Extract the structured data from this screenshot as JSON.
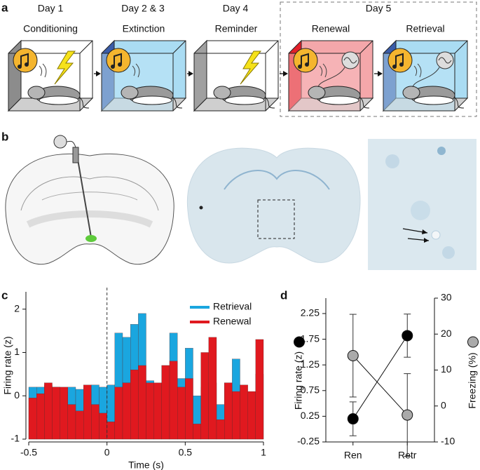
{
  "panel_labels": [
    "a",
    "b",
    "c",
    "d"
  ],
  "schedule": {
    "days": [
      "Day 1",
      "Day 2 & 3",
      "Day 4",
      "Day 5"
    ],
    "sessions": [
      "Conditioning",
      "Extinction",
      "Reminder",
      "Renewal",
      "Retrieval"
    ]
  },
  "chart_data": [
    {
      "type": "histogram",
      "xlabel": "Time (s)",
      "ylabel": "Firing rate (z)",
      "bins": [
        -0.5,
        -0.45,
        -0.4,
        -0.35,
        -0.3,
        -0.25,
        -0.2,
        -0.15,
        -0.1,
        -0.05,
        0,
        0.05,
        0.1,
        0.15,
        0.2,
        0.25,
        0.3,
        0.35,
        0.4,
        0.45,
        0.5,
        0.55,
        0.6,
        0.65,
        0.7,
        0.75,
        0.8,
        0.85,
        0.9,
        0.95,
        1.0
      ],
      "series": [
        {
          "name": "Retrieval",
          "color": "#1aa6df",
          "values": [
            0.2,
            0.2,
            0.25,
            0.2,
            0.1,
            0.2,
            0.15,
            0.1,
            0.25,
            0.2,
            0.25,
            1.45,
            1.35,
            1.65,
            1.9,
            0.35,
            0.2,
            0.7,
            1.45,
            0.4,
            1.1,
            0.0,
            0.2,
            0.3,
            -0.2,
            0.3,
            0.85,
            0.05,
            0.05,
            0.5
          ]
        },
        {
          "name": "Renewal",
          "color": "#e0191f",
          "values": [
            -0.05,
            0.05,
            0.3,
            0.2,
            0.2,
            -0.2,
            -0.35,
            0.25,
            -0.2,
            -0.4,
            -0.6,
            0.2,
            0.3,
            0.6,
            0.7,
            0.3,
            0.3,
            0.7,
            0.8,
            0.2,
            0.4,
            -0.65,
            1.0,
            1.35,
            -0.55,
            0.3,
            0.1,
            0.25,
            0.1,
            1.3
          ]
        }
      ],
      "xlim": [
        -0.5,
        1
      ],
      "xticks": [
        -0.5,
        0,
        0.5,
        1
      ],
      "ylim": [
        -1,
        2.4
      ],
      "yticks": [
        -1,
        0,
        1,
        2
      ],
      "legend": "upper right"
    },
    {
      "type": "line",
      "categories": [
        "Ren",
        "Retr"
      ],
      "series": [
        {
          "name": "Firing rate (z)",
          "color": "#000000",
          "values": [
            0.2,
            1.82
          ],
          "errors": [
            0.33,
            0.42
          ]
        },
        {
          "name": "Freezing (%)",
          "color": "#aaaaaa",
          "values": [
            14,
            -2.5
          ],
          "errors": [
            11.5,
            11.5
          ],
          "axis": "y2"
        }
      ],
      "ylim": [
        -0.25,
        2.55
      ],
      "yticks": [
        -0.25,
        0.25,
        0.75,
        1.25,
        1.75,
        2.25
      ],
      "y2lim": [
        -10,
        30
      ],
      "y2ticks": [
        -10,
        0,
        10,
        20,
        30
      ]
    }
  ]
}
